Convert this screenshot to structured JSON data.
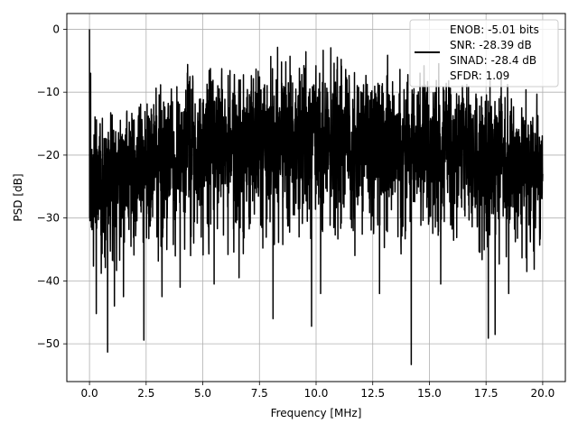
{
  "chart_data": {
    "type": "line",
    "xlabel": "Frequency [MHz]",
    "ylabel": "PSD [dB]",
    "xlim": [
      -1.0,
      21.0
    ],
    "ylim": [
      -56,
      2.5
    ],
    "xticks": [
      0.0,
      2.5,
      5.0,
      7.5,
      10.0,
      12.5,
      15.0,
      17.5,
      20.0
    ],
    "xtick_labels": [
      "0.0",
      "2.5",
      "5.0",
      "7.5",
      "10.0",
      "12.5",
      "15.0",
      "17.5",
      "20.0"
    ],
    "yticks": [
      0,
      -10,
      -20,
      -30,
      -40,
      -50
    ],
    "ytick_labels": [
      "0",
      "−10",
      "−20",
      "−30",
      "−40",
      "−50"
    ],
    "grid": true,
    "legend_position": "top-right",
    "legend_lines": [
      "ENOB: -5.01 bits",
      "SNR: -28.39 dB",
      "SINAD: -28.4 dB",
      "SFDR: 1.09"
    ],
    "series": [
      {
        "color": "#000000",
        "profile_x": [
          0,
          2.5,
          5,
          7.5,
          10,
          12.5,
          15,
          17.5,
          20
        ],
        "profile_upper": [
          -15,
          -10,
          -7,
          -5,
          -5,
          -6,
          -7,
          -9,
          -12
        ],
        "profile_lower": [
          -34,
          -32,
          -30,
          -30,
          -30,
          -30,
          -30,
          -31,
          -33
        ],
        "peaks": [
          {
            "x": 0.0,
            "y": 0.0
          },
          {
            "x": 0.05,
            "y": -7.0
          }
        ],
        "dips": [
          {
            "x": 0.3,
            "y": -45.2
          },
          {
            "x": 0.8,
            "y": -51.3
          },
          {
            "x": 1.1,
            "y": -44.0
          },
          {
            "x": 1.5,
            "y": -42.5
          },
          {
            "x": 2.4,
            "y": -49.4
          },
          {
            "x": 3.2,
            "y": -42.5
          },
          {
            "x": 4.0,
            "y": -41.0
          },
          {
            "x": 5.5,
            "y": -40.5
          },
          {
            "x": 6.6,
            "y": -39.5
          },
          {
            "x": 8.1,
            "y": -46.0
          },
          {
            "x": 9.8,
            "y": -47.2
          },
          {
            "x": 10.2,
            "y": -42.0
          },
          {
            "x": 12.8,
            "y": -42.0
          },
          {
            "x": 14.2,
            "y": -53.3
          },
          {
            "x": 15.5,
            "y": -40.5
          },
          {
            "x": 17.6,
            "y": -49.1
          },
          {
            "x": 17.9,
            "y": -48.5
          },
          {
            "x": 18.5,
            "y": -42.0
          },
          {
            "x": 19.3,
            "y": -38.5
          }
        ]
      }
    ]
  }
}
